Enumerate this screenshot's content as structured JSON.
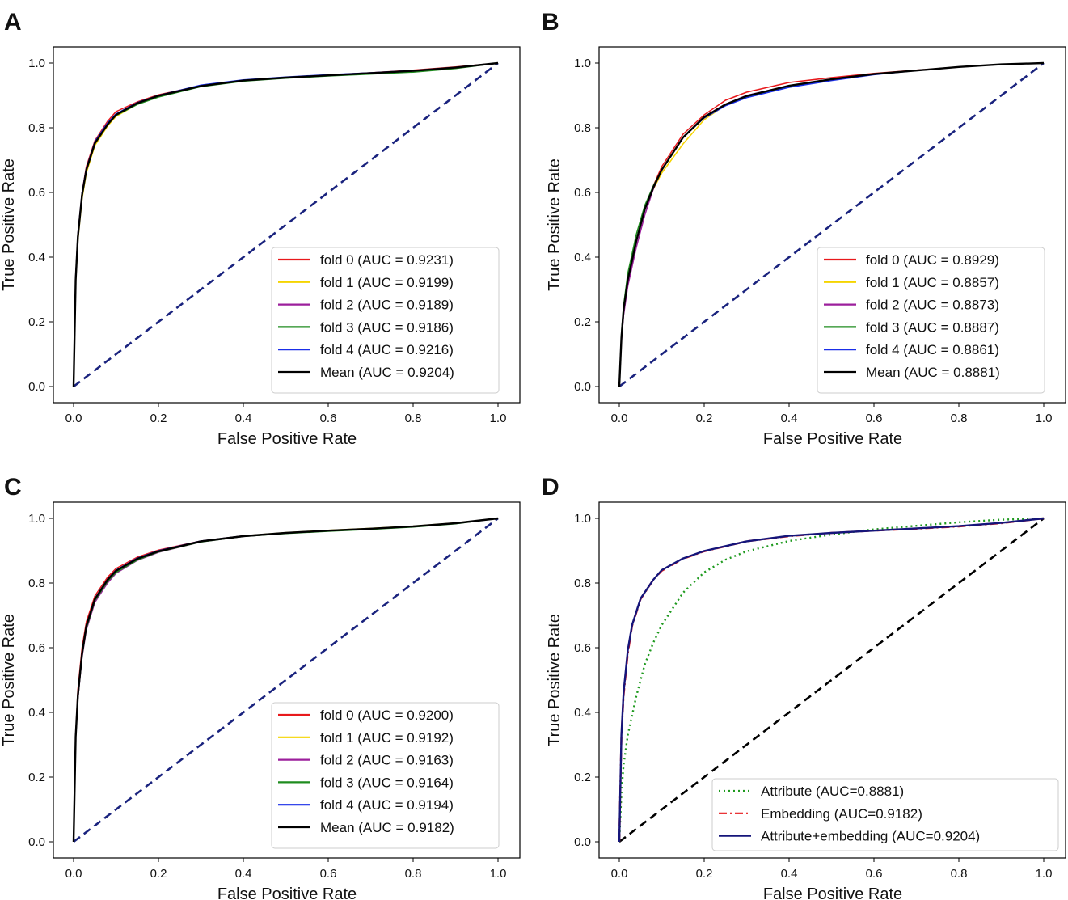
{
  "chart_data": [
    {
      "panel": "A",
      "type": "line",
      "xlabel": "False Positive Rate",
      "ylabel": "True Positive Rate",
      "xlim": [
        0,
        1
      ],
      "ylim": [
        0,
        1
      ],
      "xticks": [
        "0.0",
        "0.2",
        "0.4",
        "0.6",
        "0.8",
        "1.0"
      ],
      "yticks": [
        "0.0",
        "0.2",
        "0.4",
        "0.6",
        "0.8",
        "1.0"
      ],
      "legend_position": "lower-right",
      "diagonal": {
        "color": "#1a237e",
        "style": "dashed"
      },
      "series": [
        {
          "name": "fold 0 (AUC = 0.9231)",
          "color": "#e8191c",
          "style": "solid",
          "x": [
            0,
            0.005,
            0.01,
            0.02,
            0.03,
            0.05,
            0.08,
            0.1,
            0.15,
            0.2,
            0.3,
            0.4,
            0.5,
            0.6,
            0.7,
            0.8,
            0.9,
            1.0
          ],
          "y": [
            0,
            0.34,
            0.47,
            0.6,
            0.68,
            0.76,
            0.82,
            0.85,
            0.88,
            0.902,
            0.93,
            0.946,
            0.955,
            0.963,
            0.97,
            0.978,
            0.988,
            1.0
          ]
        },
        {
          "name": "fold 1 (AUC = 0.9199)",
          "color": "#f5d400",
          "style": "solid",
          "x": [
            0,
            0.005,
            0.01,
            0.02,
            0.03,
            0.05,
            0.08,
            0.1,
            0.15,
            0.2,
            0.3,
            0.4,
            0.5,
            0.6,
            0.7,
            0.8,
            0.9,
            1.0
          ],
          "y": [
            0,
            0.32,
            0.45,
            0.58,
            0.66,
            0.745,
            0.805,
            0.835,
            0.873,
            0.897,
            0.928,
            0.945,
            0.955,
            0.962,
            0.969,
            0.976,
            0.986,
            1.0
          ]
        },
        {
          "name": "fold 2 (AUC = 0.9189)",
          "color": "#9c1f9c",
          "style": "solid",
          "x": [
            0,
            0.005,
            0.01,
            0.02,
            0.03,
            0.05,
            0.08,
            0.1,
            0.15,
            0.2,
            0.3,
            0.4,
            0.5,
            0.6,
            0.7,
            0.8,
            0.9,
            1.0
          ],
          "y": [
            0,
            0.33,
            0.46,
            0.59,
            0.67,
            0.752,
            0.81,
            0.84,
            0.876,
            0.9,
            0.93,
            0.946,
            0.955,
            0.962,
            0.968,
            0.975,
            0.985,
            1.0
          ]
        },
        {
          "name": "fold 3 (AUC = 0.9186)",
          "color": "#1f8c1f",
          "style": "solid",
          "x": [
            0,
            0.005,
            0.01,
            0.02,
            0.03,
            0.05,
            0.08,
            0.1,
            0.15,
            0.2,
            0.3,
            0.4,
            0.5,
            0.6,
            0.7,
            0.8,
            0.9,
            1.0
          ],
          "y": [
            0,
            0.33,
            0.46,
            0.59,
            0.67,
            0.752,
            0.81,
            0.838,
            0.872,
            0.895,
            0.927,
            0.944,
            0.953,
            0.96,
            0.966,
            0.972,
            0.983,
            1.0
          ]
        },
        {
          "name": "fold 4 (AUC = 0.9216)",
          "color": "#1a2ee8",
          "style": "solid",
          "x": [
            0,
            0.005,
            0.01,
            0.02,
            0.03,
            0.05,
            0.08,
            0.1,
            0.15,
            0.2,
            0.3,
            0.4,
            0.5,
            0.6,
            0.7,
            0.8,
            0.9,
            1.0
          ],
          "y": [
            0,
            0.34,
            0.47,
            0.6,
            0.675,
            0.757,
            0.815,
            0.843,
            0.878,
            0.9,
            0.932,
            0.948,
            0.957,
            0.964,
            0.97,
            0.977,
            0.987,
            1.0
          ]
        },
        {
          "name": "Mean (AUC = 0.9204)",
          "color": "#000000",
          "style": "solid",
          "x": [
            0,
            0.005,
            0.01,
            0.02,
            0.03,
            0.05,
            0.08,
            0.1,
            0.15,
            0.2,
            0.3,
            0.4,
            0.5,
            0.6,
            0.7,
            0.8,
            0.9,
            1.0
          ],
          "y": [
            0,
            0.33,
            0.462,
            0.592,
            0.67,
            0.752,
            0.81,
            0.84,
            0.876,
            0.899,
            0.929,
            0.946,
            0.955,
            0.962,
            0.969,
            0.976,
            0.986,
            1.0
          ]
        }
      ]
    },
    {
      "panel": "B",
      "type": "line",
      "xlabel": "False Positive Rate",
      "ylabel": "True Positive Rate",
      "xlim": [
        0,
        1
      ],
      "ylim": [
        0,
        1
      ],
      "xticks": [
        "0.0",
        "0.2",
        "0.4",
        "0.6",
        "0.8",
        "1.0"
      ],
      "yticks": [
        "0.0",
        "0.2",
        "0.4",
        "0.6",
        "0.8",
        "1.0"
      ],
      "legend_position": "lower-right",
      "diagonal": {
        "color": "#1a237e",
        "style": "dashed"
      },
      "series": [
        {
          "name": "fold 0 (AUC = 0.8929)",
          "color": "#e8191c",
          "style": "solid",
          "x": [
            0,
            0.005,
            0.01,
            0.02,
            0.04,
            0.06,
            0.08,
            0.1,
            0.15,
            0.2,
            0.25,
            0.3,
            0.4,
            0.5,
            0.6,
            0.7,
            0.8,
            0.9,
            1.0
          ],
          "y": [
            0,
            0.15,
            0.24,
            0.33,
            0.45,
            0.55,
            0.62,
            0.68,
            0.78,
            0.84,
            0.885,
            0.91,
            0.94,
            0.955,
            0.968,
            0.978,
            0.988,
            0.996,
            1.0
          ]
        },
        {
          "name": "fold 1 (AUC = 0.8857)",
          "color": "#f5d400",
          "style": "solid",
          "x": [
            0,
            0.005,
            0.01,
            0.02,
            0.04,
            0.06,
            0.08,
            0.1,
            0.15,
            0.2,
            0.25,
            0.3,
            0.4,
            0.5,
            0.6,
            0.7,
            0.8,
            0.9,
            1.0
          ],
          "y": [
            0,
            0.15,
            0.24,
            0.33,
            0.45,
            0.55,
            0.61,
            0.66,
            0.75,
            0.825,
            0.87,
            0.895,
            0.928,
            0.948,
            0.965,
            0.977,
            0.988,
            0.996,
            1.0
          ]
        },
        {
          "name": "fold 2 (AUC = 0.8873)",
          "color": "#9c1f9c",
          "style": "solid",
          "x": [
            0,
            0.005,
            0.01,
            0.02,
            0.04,
            0.06,
            0.08,
            0.1,
            0.15,
            0.2,
            0.25,
            0.3,
            0.4,
            0.5,
            0.6,
            0.7,
            0.8,
            0.9,
            1.0
          ],
          "y": [
            0,
            0.14,
            0.22,
            0.31,
            0.43,
            0.53,
            0.61,
            0.67,
            0.77,
            0.835,
            0.873,
            0.9,
            0.93,
            0.95,
            0.966,
            0.977,
            0.988,
            0.996,
            1.0
          ]
        },
        {
          "name": "fold 3 (AUC = 0.8887)",
          "color": "#1f8c1f",
          "style": "solid",
          "x": [
            0,
            0.005,
            0.01,
            0.02,
            0.04,
            0.06,
            0.08,
            0.1,
            0.15,
            0.2,
            0.25,
            0.3,
            0.4,
            0.5,
            0.6,
            0.7,
            0.8,
            0.9,
            1.0
          ],
          "y": [
            0,
            0.16,
            0.25,
            0.35,
            0.47,
            0.56,
            0.62,
            0.67,
            0.77,
            0.835,
            0.87,
            0.895,
            0.928,
            0.948,
            0.965,
            0.977,
            0.988,
            0.996,
            1.0
          ]
        },
        {
          "name": "fold 4 (AUC = 0.8861)",
          "color": "#1a2ee8",
          "style": "solid",
          "x": [
            0,
            0.005,
            0.01,
            0.02,
            0.04,
            0.06,
            0.08,
            0.1,
            0.15,
            0.2,
            0.25,
            0.3,
            0.4,
            0.5,
            0.6,
            0.7,
            0.8,
            0.9,
            1.0
          ],
          "y": [
            0,
            0.15,
            0.24,
            0.33,
            0.45,
            0.55,
            0.615,
            0.67,
            0.77,
            0.83,
            0.868,
            0.893,
            0.925,
            0.946,
            0.964,
            0.977,
            0.988,
            0.996,
            1.0
          ]
        },
        {
          "name": "Mean (AUC = 0.8881)",
          "color": "#000000",
          "style": "solid",
          "x": [
            0,
            0.005,
            0.01,
            0.02,
            0.04,
            0.06,
            0.08,
            0.1,
            0.15,
            0.2,
            0.25,
            0.3,
            0.4,
            0.5,
            0.6,
            0.7,
            0.8,
            0.9,
            1.0
          ],
          "y": [
            0,
            0.15,
            0.238,
            0.33,
            0.45,
            0.548,
            0.615,
            0.67,
            0.77,
            0.833,
            0.872,
            0.898,
            0.93,
            0.95,
            0.966,
            0.977,
            0.988,
            0.996,
            1.0
          ]
        }
      ]
    },
    {
      "panel": "C",
      "type": "line",
      "xlabel": "False Positive Rate",
      "ylabel": "True Positive Rate",
      "xlim": [
        0,
        1
      ],
      "ylim": [
        0,
        1
      ],
      "xticks": [
        "0.0",
        "0.2",
        "0.4",
        "0.6",
        "0.8",
        "1.0"
      ],
      "yticks": [
        "0.0",
        "0.2",
        "0.4",
        "0.6",
        "0.8",
        "1.0"
      ],
      "legend_position": "lower-right",
      "diagonal": {
        "color": "#1a237e",
        "style": "dashed"
      },
      "series": [
        {
          "name": "fold 0 (AUC = 0.9200)",
          "color": "#e8191c",
          "style": "solid",
          "x": [
            0,
            0.005,
            0.01,
            0.02,
            0.03,
            0.05,
            0.08,
            0.1,
            0.15,
            0.2,
            0.3,
            0.4,
            0.5,
            0.6,
            0.7,
            0.8,
            0.9,
            1.0
          ],
          "y": [
            0,
            0.33,
            0.47,
            0.6,
            0.68,
            0.76,
            0.818,
            0.845,
            0.88,
            0.902,
            0.93,
            0.946,
            0.955,
            0.962,
            0.968,
            0.975,
            0.985,
            1.0
          ]
        },
        {
          "name": "fold 1 (AUC = 0.9192)",
          "color": "#f5d400",
          "style": "solid",
          "x": [
            0,
            0.005,
            0.01,
            0.02,
            0.03,
            0.05,
            0.08,
            0.1,
            0.15,
            0.2,
            0.3,
            0.4,
            0.5,
            0.6,
            0.7,
            0.8,
            0.9,
            1.0
          ],
          "y": [
            0,
            0.32,
            0.45,
            0.58,
            0.665,
            0.75,
            0.81,
            0.838,
            0.875,
            0.898,
            0.929,
            0.946,
            0.956,
            0.963,
            0.969,
            0.976,
            0.986,
            1.0
          ]
        },
        {
          "name": "fold 2 (AUC = 0.9163)",
          "color": "#9c1f9c",
          "style": "solid",
          "x": [
            0,
            0.005,
            0.01,
            0.02,
            0.03,
            0.05,
            0.08,
            0.1,
            0.15,
            0.2,
            0.3,
            0.4,
            0.5,
            0.6,
            0.7,
            0.8,
            0.9,
            1.0
          ],
          "y": [
            0,
            0.32,
            0.44,
            0.57,
            0.655,
            0.74,
            0.8,
            0.83,
            0.87,
            0.895,
            0.927,
            0.944,
            0.954,
            0.961,
            0.967,
            0.974,
            0.984,
            1.0
          ]
        },
        {
          "name": "fold 3 (AUC = 0.9164)",
          "color": "#1f8c1f",
          "style": "solid",
          "x": [
            0,
            0.005,
            0.01,
            0.02,
            0.03,
            0.05,
            0.08,
            0.1,
            0.15,
            0.2,
            0.3,
            0.4,
            0.5,
            0.6,
            0.7,
            0.8,
            0.9,
            1.0
          ],
          "y": [
            0,
            0.32,
            0.445,
            0.575,
            0.66,
            0.745,
            0.805,
            0.833,
            0.871,
            0.896,
            0.927,
            0.944,
            0.953,
            0.96,
            0.966,
            0.973,
            0.983,
            1.0
          ]
        },
        {
          "name": "fold 4 (AUC = 0.9194)",
          "color": "#1a2ee8",
          "style": "solid",
          "x": [
            0,
            0.005,
            0.01,
            0.02,
            0.03,
            0.05,
            0.08,
            0.1,
            0.15,
            0.2,
            0.3,
            0.4,
            0.5,
            0.6,
            0.7,
            0.8,
            0.9,
            1.0
          ],
          "y": [
            0,
            0.33,
            0.455,
            0.585,
            0.67,
            0.752,
            0.812,
            0.84,
            0.877,
            0.9,
            0.93,
            0.946,
            0.955,
            0.962,
            0.968,
            0.975,
            0.985,
            1.0
          ]
        },
        {
          "name": "Mean (AUC = 0.9182)",
          "color": "#000000",
          "style": "solid",
          "x": [
            0,
            0.005,
            0.01,
            0.02,
            0.03,
            0.05,
            0.08,
            0.1,
            0.15,
            0.2,
            0.3,
            0.4,
            0.5,
            0.6,
            0.7,
            0.8,
            0.9,
            1.0
          ],
          "y": [
            0,
            0.325,
            0.452,
            0.582,
            0.667,
            0.75,
            0.81,
            0.838,
            0.875,
            0.898,
            0.929,
            0.945,
            0.955,
            0.962,
            0.968,
            0.975,
            0.985,
            1.0
          ]
        }
      ]
    },
    {
      "panel": "D",
      "type": "line",
      "xlabel": "False Positive Rate",
      "ylabel": "True Positive Rate",
      "xlim": [
        0,
        1
      ],
      "ylim": [
        0,
        1
      ],
      "xticks": [
        "0.0",
        "0.2",
        "0.4",
        "0.6",
        "0.8",
        "1.0"
      ],
      "yticks": [
        "0.0",
        "0.2",
        "0.4",
        "0.6",
        "0.8",
        "1.0"
      ],
      "legend_position": "lower-right",
      "diagonal": {
        "color": "#000000",
        "style": "dashed"
      },
      "series": [
        {
          "name": "Attribute (AUC=0.8881)",
          "color": "#1f9a1f",
          "style": "dotted",
          "x": [
            0,
            0.005,
            0.01,
            0.02,
            0.04,
            0.06,
            0.08,
            0.1,
            0.15,
            0.2,
            0.25,
            0.3,
            0.4,
            0.5,
            0.6,
            0.7,
            0.8,
            0.9,
            1.0
          ],
          "y": [
            0,
            0.15,
            0.238,
            0.33,
            0.45,
            0.548,
            0.615,
            0.67,
            0.77,
            0.833,
            0.872,
            0.898,
            0.93,
            0.95,
            0.966,
            0.977,
            0.988,
            0.996,
            1.0
          ]
        },
        {
          "name": "Embedding (AUC=0.9182)",
          "color": "#e8191c",
          "style": "dashdot",
          "x": [
            0,
            0.005,
            0.01,
            0.02,
            0.03,
            0.05,
            0.08,
            0.1,
            0.15,
            0.2,
            0.3,
            0.4,
            0.5,
            0.6,
            0.7,
            0.8,
            0.9,
            1.0
          ],
          "y": [
            0,
            0.325,
            0.452,
            0.582,
            0.667,
            0.75,
            0.81,
            0.838,
            0.875,
            0.898,
            0.929,
            0.945,
            0.955,
            0.962,
            0.968,
            0.975,
            0.985,
            1.0
          ]
        },
        {
          "name": "Attribute+embedding (AUC=0.9204)",
          "color": "#15157a",
          "style": "solid",
          "x": [
            0,
            0.005,
            0.01,
            0.02,
            0.03,
            0.05,
            0.08,
            0.1,
            0.15,
            0.2,
            0.3,
            0.4,
            0.5,
            0.6,
            0.7,
            0.8,
            0.9,
            1.0
          ],
          "y": [
            0,
            0.33,
            0.462,
            0.592,
            0.67,
            0.752,
            0.81,
            0.84,
            0.876,
            0.899,
            0.929,
            0.946,
            0.955,
            0.962,
            0.969,
            0.976,
            0.986,
            1.0
          ]
        }
      ]
    }
  ]
}
